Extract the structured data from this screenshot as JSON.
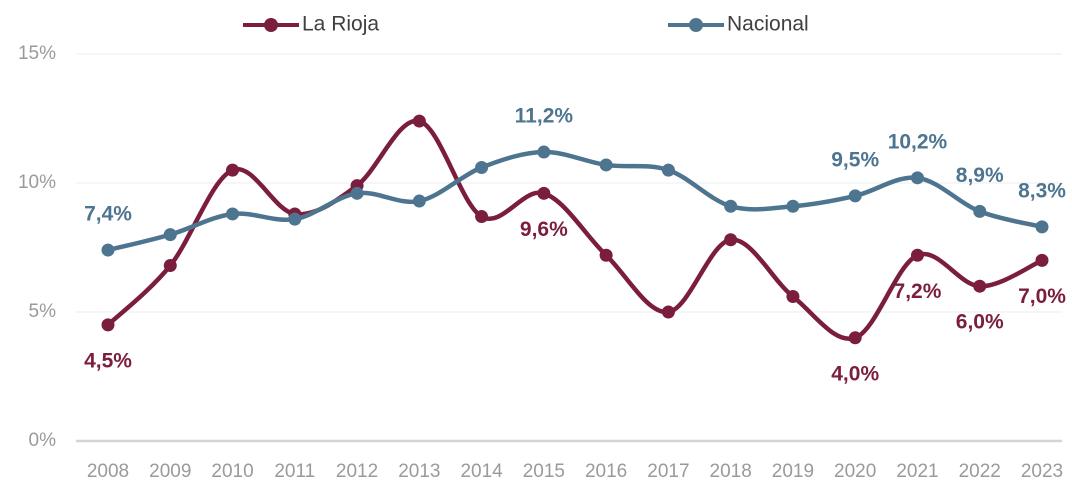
{
  "chart_data": {
    "type": "line",
    "categories": [
      "2008",
      "2009",
      "2010",
      "2011",
      "2012",
      "2013",
      "2014",
      "2015",
      "2016",
      "2017",
      "2018",
      "2019",
      "2020",
      "2021",
      "2022",
      "2023"
    ],
    "series": [
      {
        "name": "La Rioja",
        "color": "#7b1e3e",
        "values": [
          4.5,
          6.8,
          10.5,
          8.8,
          9.9,
          12.4,
          8.7,
          9.6,
          7.2,
          5.0,
          7.8,
          5.6,
          4.0,
          7.2,
          6.0,
          7.0
        ],
        "value_labels": [
          "4,5%",
          null,
          null,
          null,
          null,
          null,
          null,
          "9,6%",
          null,
          null,
          null,
          null,
          "4,0%",
          "7,2%",
          "6,0%",
          "7,0%"
        ]
      },
      {
        "name": "Nacional",
        "color": "#4e7590",
        "values": [
          7.4,
          8.0,
          8.8,
          8.6,
          9.6,
          9.3,
          10.6,
          11.2,
          10.7,
          10.5,
          9.1,
          9.1,
          9.5,
          10.2,
          8.9,
          8.3
        ],
        "value_labels": [
          "7,4%",
          null,
          null,
          null,
          null,
          null,
          null,
          "11,2%",
          null,
          null,
          null,
          null,
          "9,5%",
          "10,2%",
          "8,9%",
          "8,3%"
        ]
      }
    ],
    "ylim": [
      0,
      15
    ],
    "yticks": [
      {
        "value": 0,
        "label": "0%"
      },
      {
        "value": 5,
        "label": "5%"
      },
      {
        "value": 10,
        "label": "10%"
      },
      {
        "value": 15,
        "label": "15%"
      }
    ],
    "grid": true,
    "smooth": true,
    "legend": "top"
  }
}
